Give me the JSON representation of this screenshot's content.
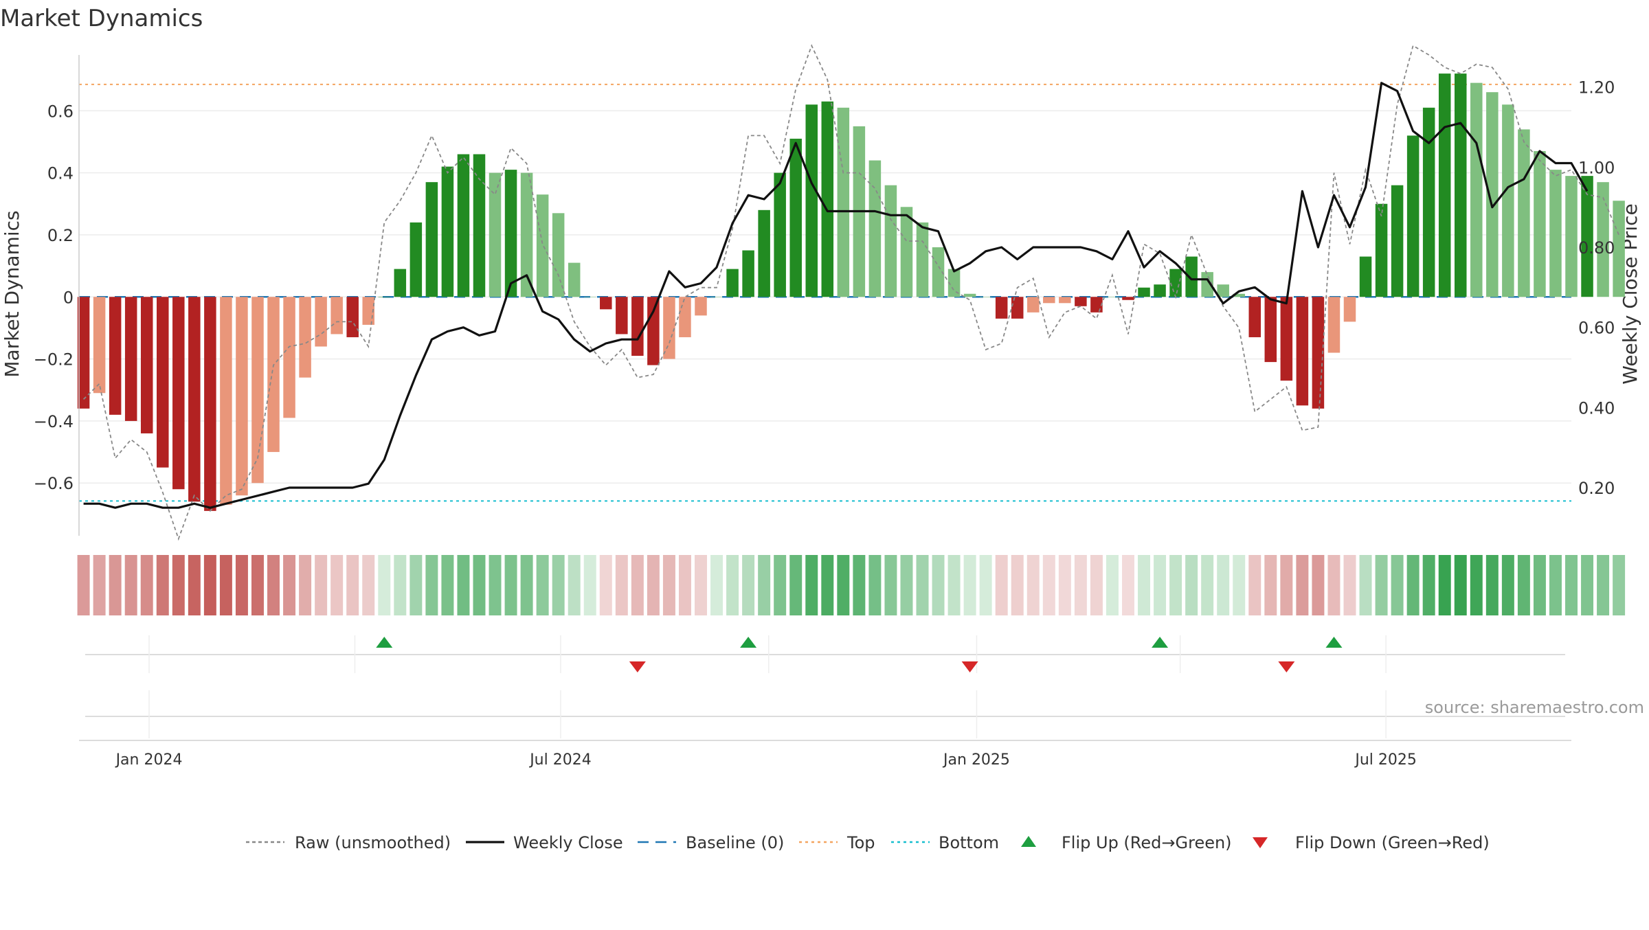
{
  "chart_data": {
    "type": "bar",
    "title": "Market Dynamics",
    "source": "source: sharemaestro.com",
    "xlabel": "",
    "ylabel": "Market Dynamics",
    "ylabel_right": "Weekly Close Price",
    "ylim": [
      -0.77,
      0.78
    ],
    "ylim_right": [
      0.08,
      1.28
    ],
    "y_ticks": [
      -0.6,
      -0.4,
      -0.2,
      0,
      0.2,
      0.4,
      0.6
    ],
    "y_tick_labels": [
      "−0.6",
      "−0.4",
      "−0.2",
      "0",
      "0.2",
      "0.4",
      "0.6"
    ],
    "y_right_ticks": [
      0.2,
      0.4,
      0.6,
      0.8,
      1.0,
      1.2
    ],
    "y_right_tick_labels": [
      "0.20",
      "0.40",
      "0.60",
      "0.80",
      "1.00",
      "1.20"
    ],
    "x_range": [
      "2023-12-01",
      "2025-09-21"
    ],
    "x_ticks": [
      "2024-01-01",
      "2024-07-01",
      "2025-01-01",
      "2025-07-01"
    ],
    "x_tick_labels": [
      "Jan 2024",
      "Jul 2024",
      "Jan 2025",
      "Jul 2025"
    ],
    "grid": true,
    "legend_position": "bottom",
    "colors": {
      "strong_red": "#B22222",
      "weak_red": "#E9967A",
      "strong_green": "#228B22",
      "weak_green": "#7FBF7F",
      "close_line": "#111111",
      "raw_line": "#888888",
      "baseline": "#1F77B4",
      "top": "#F4A460",
      "bottom": "#17BECF",
      "flip_up": "#1E9E40",
      "flip_down": "#D62728"
    },
    "thresholds": {
      "baseline": 0,
      "top": 0.685,
      "bottom": -0.658
    },
    "start_date": "2023-12-03",
    "step_days": 7,
    "bars": [
      -0.36,
      -0.31,
      -0.38,
      -0.4,
      -0.44,
      -0.55,
      -0.62,
      -0.66,
      -0.69,
      -0.67,
      -0.64,
      -0.6,
      -0.5,
      -0.39,
      -0.26,
      -0.16,
      -0.12,
      -0.13,
      -0.09,
      0.0,
      0.09,
      0.24,
      0.37,
      0.42,
      0.46,
      0.46,
      0.4,
      0.41,
      0.4,
      0.33,
      0.27,
      0.11,
      0.0,
      -0.04,
      -0.12,
      -0.19,
      -0.22,
      -0.2,
      -0.13,
      -0.06,
      0.0,
      0.09,
      0.15,
      0.28,
      0.4,
      0.51,
      0.62,
      0.63,
      0.61,
      0.55,
      0.44,
      0.36,
      0.29,
      0.24,
      0.16,
      0.09,
      0.01,
      0.0,
      -0.07,
      -0.07,
      -0.05,
      -0.02,
      -0.02,
      -0.03,
      -0.05,
      0.0,
      -0.01,
      0.03,
      0.04,
      0.09,
      0.13,
      0.08,
      0.04,
      0.01,
      -0.13,
      -0.21,
      -0.27,
      -0.35,
      -0.36,
      -0.18,
      -0.08,
      0.13,
      0.3,
      0.36,
      0.52,
      0.61,
      0.72,
      0.72,
      0.69,
      0.66,
      0.62,
      0.54,
      0.47,
      0.41,
      0.39,
      0.39,
      0.37,
      0.31
    ],
    "bar_shade": [
      "strong",
      "weak",
      "strong",
      "strong",
      "strong",
      "strong",
      "strong",
      "strong",
      "strong",
      "weak",
      "weak",
      "weak",
      "weak",
      "weak",
      "weak",
      "weak",
      "weak",
      "strong",
      "weak",
      "strong",
      "strong",
      "strong",
      "strong",
      "strong",
      "strong",
      "strong",
      "weak",
      "strong",
      "weak",
      "weak",
      "weak",
      "weak",
      "weak",
      "strong",
      "strong",
      "strong",
      "strong",
      "weak",
      "weak",
      "weak",
      "weak",
      "strong",
      "strong",
      "strong",
      "strong",
      "strong",
      "strong",
      "strong",
      "weak",
      "weak",
      "weak",
      "weak",
      "weak",
      "weak",
      "weak",
      "weak",
      "weak",
      "weak",
      "strong",
      "strong",
      "weak",
      "weak",
      "weak",
      "strong",
      "strong",
      "weak",
      "strong",
      "strong",
      "strong",
      "strong",
      "strong",
      "weak",
      "weak",
      "weak",
      "strong",
      "strong",
      "strong",
      "strong",
      "strong",
      "weak",
      "weak",
      "strong",
      "strong",
      "strong",
      "strong",
      "strong",
      "strong",
      "strong",
      "weak",
      "weak",
      "weak",
      "weak",
      "weak",
      "weak",
      "weak",
      "strong",
      "weak",
      "weak"
    ],
    "series": [
      {
        "name": "Raw (unsmoothed)",
        "style": "dashed",
        "values": [
          -0.33,
          -0.28,
          -0.52,
          -0.46,
          -0.5,
          -0.63,
          -0.78,
          -0.64,
          -0.69,
          -0.64,
          -0.62,
          -0.52,
          -0.22,
          -0.16,
          -0.15,
          -0.12,
          -0.08,
          -0.08,
          -0.16,
          0.24,
          0.31,
          0.4,
          0.52,
          0.4,
          0.45,
          0.38,
          0.33,
          0.48,
          0.43,
          0.17,
          0.07,
          -0.08,
          -0.16,
          -0.22,
          -0.17,
          -0.26,
          -0.25,
          -0.15,
          0.0,
          0.03,
          0.03,
          0.22,
          0.52,
          0.52,
          0.43,
          0.67,
          0.81,
          0.7,
          0.4,
          0.4,
          0.35,
          0.25,
          0.18,
          0.18,
          0.1,
          0.02,
          -0.01,
          -0.17,
          -0.15,
          0.03,
          0.06,
          -0.13,
          -0.05,
          -0.03,
          -0.07,
          0.07,
          -0.12,
          0.17,
          0.14,
          0.0,
          0.2,
          0.07,
          -0.03,
          -0.1,
          -0.37,
          -0.33,
          -0.29,
          -0.43,
          -0.42,
          0.4,
          0.17,
          0.41,
          0.26,
          0.62,
          0.81,
          0.78,
          0.74,
          0.72,
          0.75,
          0.74,
          0.67,
          0.5,
          0.44,
          0.39,
          0.41,
          0.33,
          0.32,
          0.2
        ]
      },
      {
        "name": "Weekly Close",
        "style": "solid",
        "values": [
          0.16,
          0.16,
          0.15,
          0.16,
          0.16,
          0.15,
          0.15,
          0.16,
          0.15,
          0.16,
          0.17,
          0.18,
          0.19,
          0.2,
          0.2,
          0.2,
          0.2,
          0.2,
          0.21,
          0.27,
          0.38,
          0.48,
          0.57,
          0.59,
          0.6,
          0.58,
          0.59,
          0.71,
          0.73,
          0.64,
          0.62,
          0.57,
          0.54,
          0.56,
          0.57,
          0.57,
          0.64,
          0.74,
          0.7,
          0.71,
          0.75,
          0.86,
          0.93,
          0.92,
          0.96,
          1.06,
          0.96,
          0.89,
          0.89,
          0.89,
          0.89,
          0.88,
          0.88,
          0.85,
          0.84,
          0.74,
          0.76,
          0.79,
          0.8,
          0.77,
          0.8,
          0.8,
          0.8,
          0.8,
          0.79,
          0.77,
          0.84,
          0.75,
          0.79,
          0.76,
          0.72,
          0.72,
          0.66,
          0.69,
          0.7,
          0.67,
          0.66,
          0.94,
          0.8,
          0.93,
          0.85,
          0.95,
          1.21,
          1.19,
          1.09,
          1.06,
          1.1,
          1.11,
          1.06,
          0.9,
          0.95,
          0.97,
          1.04,
          1.01,
          1.01,
          0.94
        ]
      }
    ],
    "strength_strip": [
      -0.36,
      -0.31,
      -0.38,
      -0.4,
      -0.44,
      -0.55,
      -0.62,
      -0.66,
      -0.69,
      -0.67,
      -0.64,
      -0.6,
      -0.5,
      -0.39,
      -0.26,
      -0.16,
      -0.12,
      -0.13,
      -0.09,
      0.0,
      0.09,
      0.24,
      0.37,
      0.42,
      0.46,
      0.46,
      0.4,
      0.41,
      0.4,
      0.33,
      0.27,
      0.11,
      0.0,
      -0.04,
      -0.12,
      -0.19,
      -0.22,
      -0.2,
      -0.13,
      -0.06,
      0.0,
      0.09,
      0.15,
      0.28,
      0.4,
      0.51,
      0.62,
      0.63,
      0.61,
      0.55,
      0.44,
      0.36,
      0.29,
      0.24,
      0.16,
      0.09,
      0.01,
      0.0,
      -0.07,
      -0.07,
      -0.05,
      -0.02,
      -0.02,
      -0.03,
      -0.05,
      0.0,
      -0.01,
      0.03,
      0.04,
      0.09,
      0.13,
      0.08,
      0.04,
      0.01,
      -0.13,
      -0.21,
      -0.27,
      -0.35,
      -0.36,
      -0.18,
      -0.08,
      0.13,
      0.3,
      0.36,
      0.52,
      0.61,
      0.72,
      0.72,
      0.69,
      0.66,
      0.62,
      0.54,
      0.47,
      0.41,
      0.39,
      0.39,
      0.37,
      0.31
    ],
    "flips": [
      {
        "type": "up",
        "date": "2024-04-14"
      },
      {
        "type": "down",
        "date": "2024-08-04"
      },
      {
        "type": "up",
        "date": "2024-09-22"
      },
      {
        "type": "down",
        "date": "2024-12-29"
      },
      {
        "type": "up",
        "date": "2025-03-23"
      },
      {
        "type": "down",
        "date": "2025-05-18"
      },
      {
        "type": "up",
        "date": "2025-06-08"
      }
    ],
    "legend": [
      {
        "label": "Raw (unsmoothed)",
        "kind": "dashed-line",
        "color": "#888888"
      },
      {
        "label": "Weekly Close",
        "kind": "solid-line",
        "color": "#111111"
      },
      {
        "label": "Baseline (0)",
        "kind": "long-dash",
        "color": "#1F77B4"
      },
      {
        "label": "Top",
        "kind": "dotted-line",
        "color": "#F4A460"
      },
      {
        "label": "Bottom",
        "kind": "dotted-line",
        "color": "#17BECF"
      },
      {
        "label": "Flip Up (Red→Green)",
        "kind": "triangle-up",
        "color": "#1E9E40"
      },
      {
        "label": "Flip Down (Green→Red)",
        "kind": "triangle-down",
        "color": "#D62728"
      }
    ]
  }
}
